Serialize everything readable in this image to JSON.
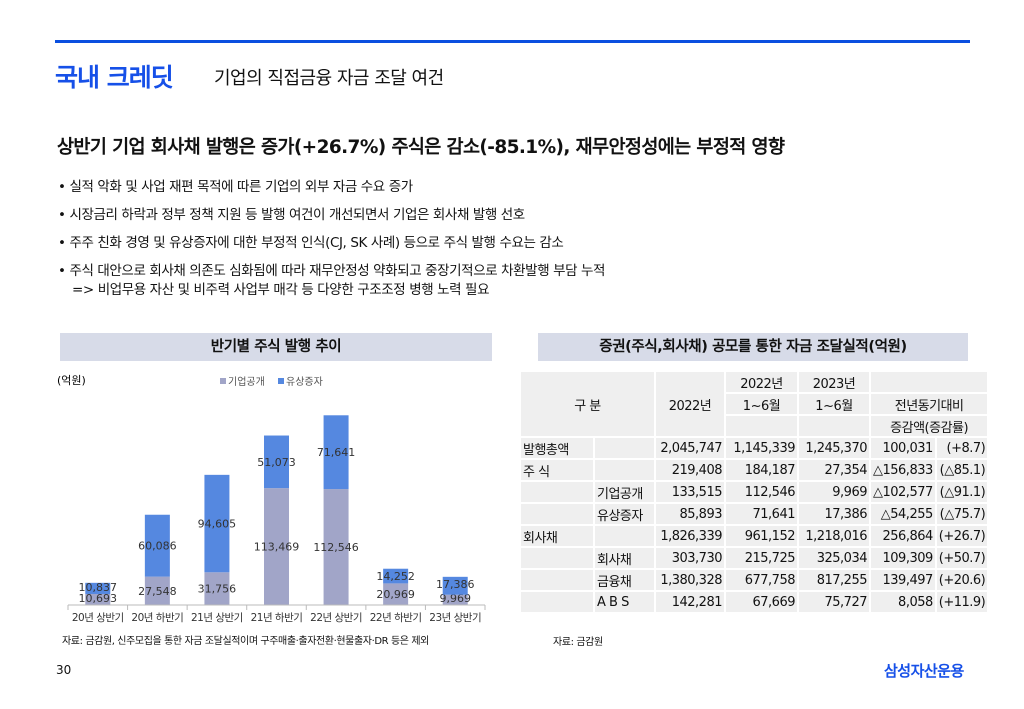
{
  "header": {
    "title": "국내 크레딧",
    "subtitle": "기업의 직접금융 자금 조달 여건"
  },
  "headline": "상반기 기업 회사채 발행은 증가(+26.7%) 주식은 감소(-85.1%), 재무안정성에는 부정적 영향",
  "bullets": [
    "• 실적 악화 및 사업 재편 목적에 따른 기업의 외부 자금 수요 증가",
    "• 시장금리 하락과 정부 정책 지원 등 발행 여건이 개선되면서 기업은 회사채 발행 선호",
    "• 주주 친화 경영 및 유상증자에 대한 부정적 인식(CJ, SK 사례) 등으로 주식 발행 수요는 감소",
    "• 주식 대안으로 회사채 의존도 심화됨에 따라 재무안정성 약화되고 중장기적으로 차환발행 부담 누적"
  ],
  "bullet_cont": "=> 비업무용 자산 및 비주력 사업부 매각 등 다양한 구조조정 병행 노력 필요",
  "chart_data": {
    "type": "bar",
    "stacked": true,
    "title": "반기별 주식 발행 추이",
    "ylabel": "(억원)",
    "ylim": [
      0,
      200000
    ],
    "categories": [
      "20년 상반기",
      "20년 하반기",
      "21년 상반기",
      "21년 하반기",
      "22년 상반기",
      "22년 하반기",
      "23년 상반기"
    ],
    "series": [
      {
        "name": "기업공개",
        "color": "#a1a5c8",
        "values": [
          10693,
          27548,
          31756,
          113469,
          112546,
          20969,
          9969
        ]
      },
      {
        "name": "유상증자",
        "color": "#5588e0",
        "values": [
          10837,
          60086,
          94605,
          51073,
          71641,
          14252,
          17386
        ]
      }
    ],
    "legend": "top-center"
  },
  "chart_source": "자료: 금감원, 신주모집을 통한 자금 조달실적이며 구주매출·출자전환·현물출자·DR 등은 제외",
  "table": {
    "title": "증권(주식,회사채) 공모를 통한 자금 조달실적(억원)",
    "headers": {
      "category": "구 분",
      "y2022": "2022년",
      "h22a": "2022년",
      "h22b": "1~6월",
      "h23a": "2023년",
      "h23b": "1~6월",
      "diff_a": "전년동기대비",
      "diff_b": "증감액(증감률)"
    },
    "rows": [
      {
        "l1": "발행총액",
        "l2": "",
        "v": [
          "2,045,747",
          "1,145,339",
          "1,245,370",
          "100,031",
          "(+8.7)"
        ]
      },
      {
        "l1": "주 식",
        "l2": "",
        "v": [
          "219,408",
          "184,187",
          "27,354",
          "△156,833",
          "(△85.1)"
        ]
      },
      {
        "l1": "",
        "l2": "기업공개",
        "v": [
          "133,515",
          "112,546",
          "9,969",
          "△102,577",
          "(△91.1)"
        ]
      },
      {
        "l1": "",
        "l2": "유상증자",
        "v": [
          "85,893",
          "71,641",
          "17,386",
          "△54,255",
          "(△75.7)"
        ]
      },
      {
        "l1": "회사채",
        "l2": "",
        "v": [
          "1,826,339",
          "961,152",
          "1,218,016",
          "256,864",
          "(+26.7)"
        ]
      },
      {
        "l1": "",
        "l2": "회사채",
        "v": [
          "303,730",
          "215,725",
          "325,034",
          "109,309",
          "(+50.7)"
        ]
      },
      {
        "l1": "",
        "l2": "금융채",
        "v": [
          "1,380,328",
          "677,758",
          "817,255",
          "139,497",
          "(+20.6)"
        ]
      },
      {
        "l1": "",
        "l2": "A B S",
        "v": [
          "142,281",
          "67,669",
          "75,727",
          "8,058",
          "(+11.9)"
        ]
      }
    ]
  },
  "table_source": "자료: 금감원",
  "footer": {
    "page": "30",
    "logo": "삼성자산운용"
  }
}
